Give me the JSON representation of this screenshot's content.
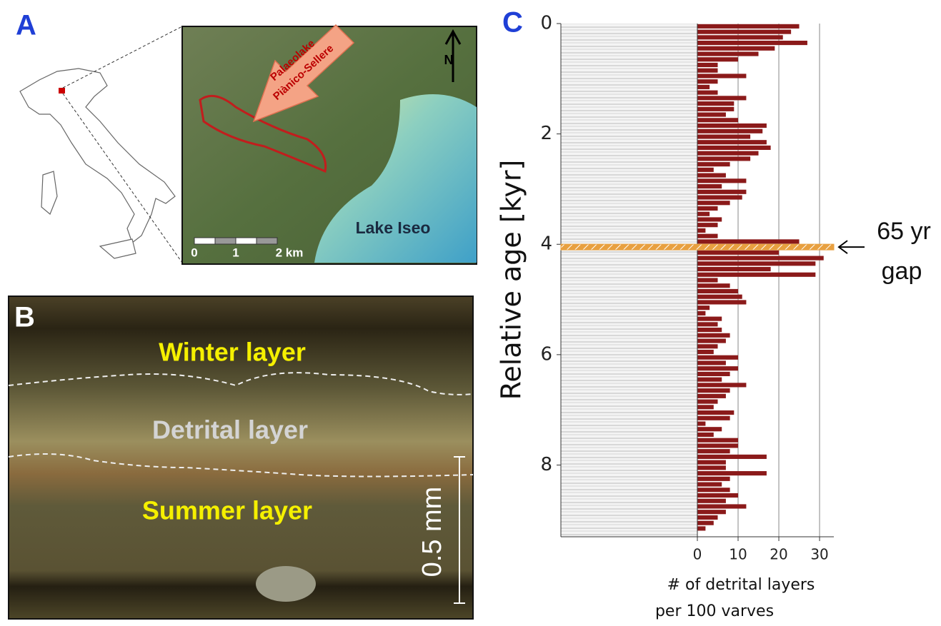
{
  "panels": {
    "a": {
      "letter": "A",
      "palaeolake_label": [
        "Palaeolake",
        "Piànico-Sellere"
      ],
      "north": "N",
      "scale_labels": [
        "0",
        "1",
        "2 km"
      ],
      "lake_label": "Lake Iseo"
    },
    "b": {
      "letter": "B",
      "winter": "Winter layer",
      "detrital": "Detrital layer",
      "summer": "Summer layer",
      "scale": "0.5 mm"
    }
  },
  "chart_data": {
    "type": "hbar-histogram",
    "letter": "C",
    "ylabel": "Relative age [kyr]",
    "xlabel": [
      "# of detrital layers",
      "per 100 varves"
    ],
    "bins": [
      0,
      0.1,
      0.2,
      0.3,
      0.4,
      0.5,
      0.6,
      0.7,
      0.8,
      0.9,
      1.0,
      1.1,
      1.2,
      1.3,
      1.4,
      1.5,
      1.6,
      1.7,
      1.8,
      1.9,
      2.0,
      2.1,
      2.2,
      2.3,
      2.4,
      2.5,
      2.6,
      2.7,
      2.8,
      2.9,
      3.0,
      3.1,
      3.2,
      3.3,
      3.4,
      3.5,
      3.6,
      3.7,
      3.8,
      3.9,
      4.0,
      4.1,
      4.2,
      4.3,
      4.4,
      4.5,
      4.6,
      4.7,
      4.8,
      4.9,
      5.0,
      5.1,
      5.2,
      5.3,
      5.4,
      5.5,
      5.6,
      5.7,
      5.8,
      5.9,
      6.0,
      6.1,
      6.2,
      6.3,
      6.4,
      6.5,
      6.6,
      6.7,
      6.8,
      6.9,
      7.0,
      7.1,
      7.2,
      7.3,
      7.4,
      7.5,
      7.6,
      7.7,
      7.8,
      7.9,
      8.0,
      8.1,
      8.2,
      8.3,
      8.4,
      8.5,
      8.6,
      8.7,
      8.8,
      8.9,
      9.0,
      9.1,
      9.2
    ],
    "values": [
      25,
      23,
      21,
      27,
      19,
      15,
      10,
      5,
      5,
      12,
      5,
      3,
      5,
      12,
      9,
      9,
      7,
      10,
      17,
      16,
      13,
      17,
      18,
      15,
      13,
      8,
      4,
      7,
      12,
      6,
      12,
      11,
      8,
      5,
      3,
      6,
      5,
      2,
      5,
      25,
      12,
      20,
      31,
      29,
      18,
      29,
      5,
      8,
      10,
      11,
      12,
      3,
      2,
      6,
      5,
      6,
      8,
      7,
      5,
      4,
      10,
      7,
      10,
      8,
      6,
      12,
      8,
      7,
      5,
      4,
      9,
      8,
      2,
      6,
      4,
      10,
      10,
      8,
      17,
      7,
      7,
      17,
      8,
      6,
      8,
      10,
      7,
      12,
      7,
      5,
      4,
      2
    ],
    "color": "#8b1a1a",
    "ylim": [
      0,
      9.3
    ],
    "yticks": [
      0,
      2,
      4,
      6,
      8
    ],
    "xlim": [
      0,
      33.5
    ],
    "xticks": [
      0,
      10,
      20,
      30
    ],
    "grid": true,
    "gap": {
      "age": 4.05,
      "label": [
        "65 yr",
        "gap"
      ],
      "color": "#e8a040"
    }
  }
}
